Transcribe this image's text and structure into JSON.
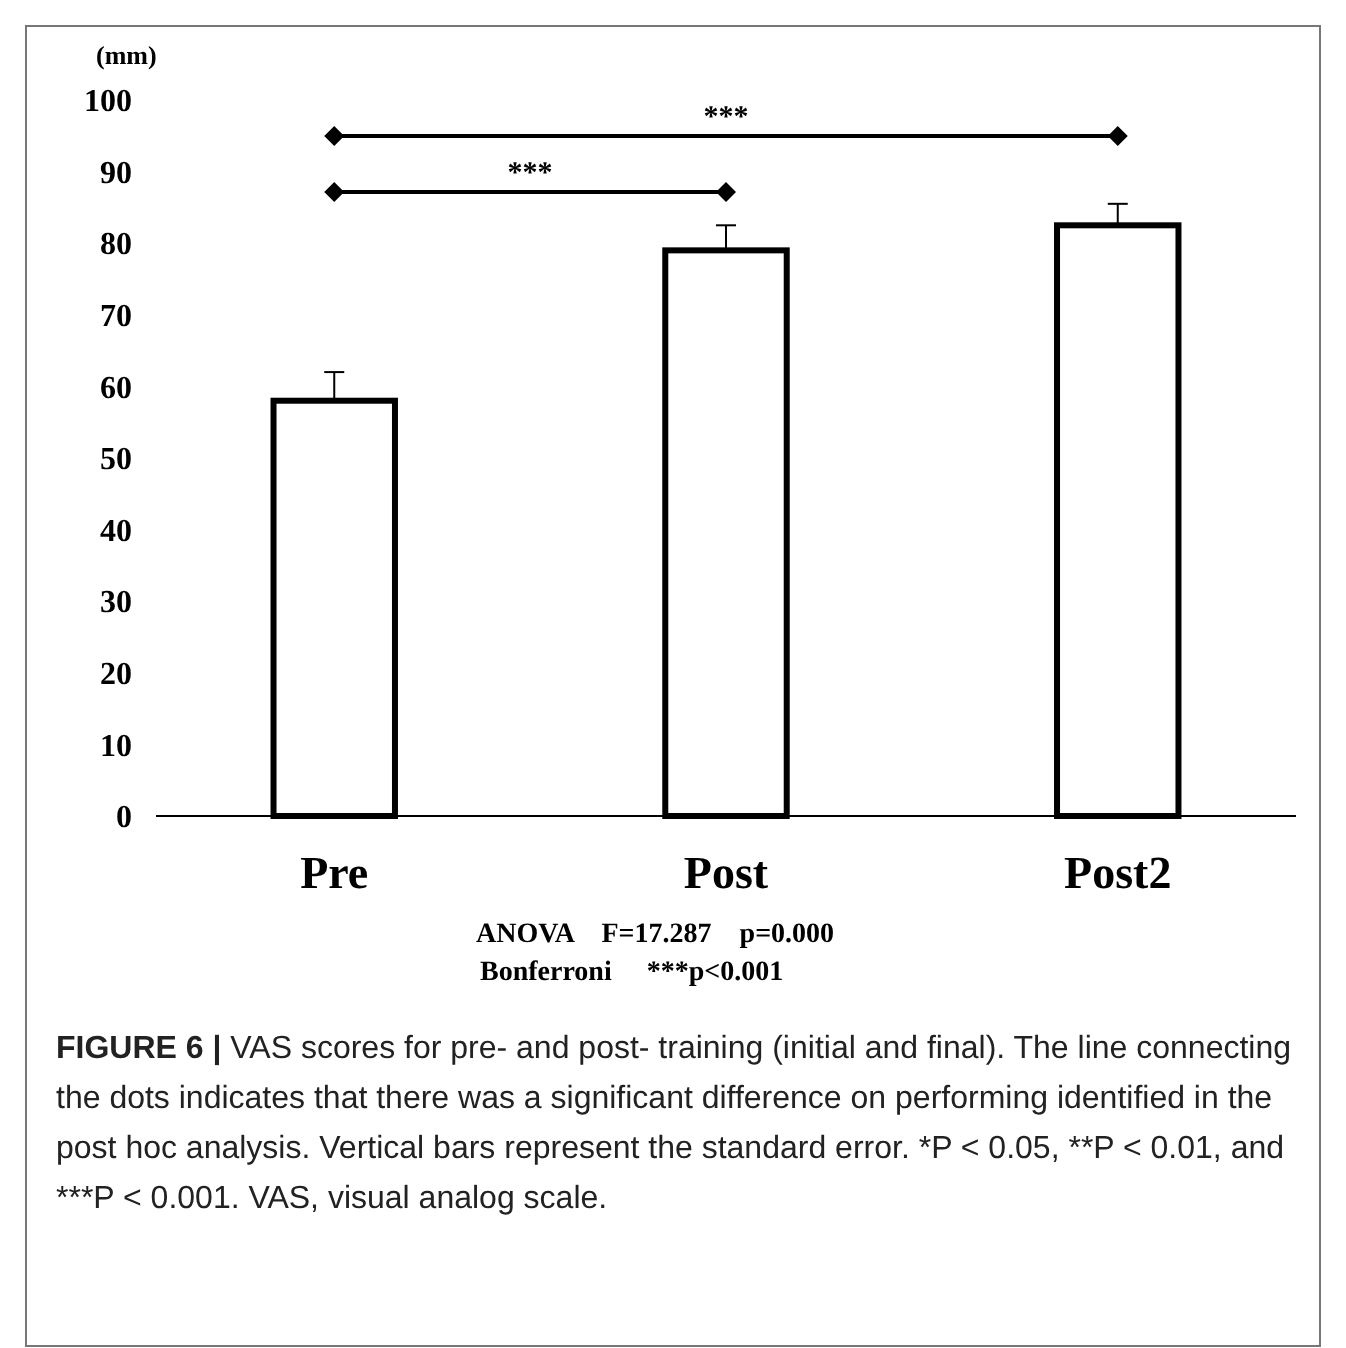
{
  "chart_data": {
    "type": "bar",
    "ylabel": "(mm)",
    "categories": [
      "Pre",
      "Post",
      "Post2"
    ],
    "values": [
      58,
      79,
      82.5
    ],
    "errors": [
      4,
      3.5,
      3
    ],
    "color": "#ffffff",
    "ylim": [
      0,
      100
    ],
    "yticks": [
      0,
      10,
      20,
      30,
      40,
      50,
      60,
      70,
      80,
      90,
      100
    ],
    "grid": false,
    "annotations": [
      "***",
      "***",
      "ANOVA    F=17.287    p=0.000",
      "Bonferroni     ***p<0.001",
      "FIGURE 6 | VAS scores for pre- and post- training (initial and final). The line connecting the dots indicates that there was a significant difference on performing identified in the post hoc analysis. Vertical bars represent the standard error. *P < 0.05, **P < 0.01, and ***P < 0.001. VAS, visual analog scale."
    ]
  }
}
